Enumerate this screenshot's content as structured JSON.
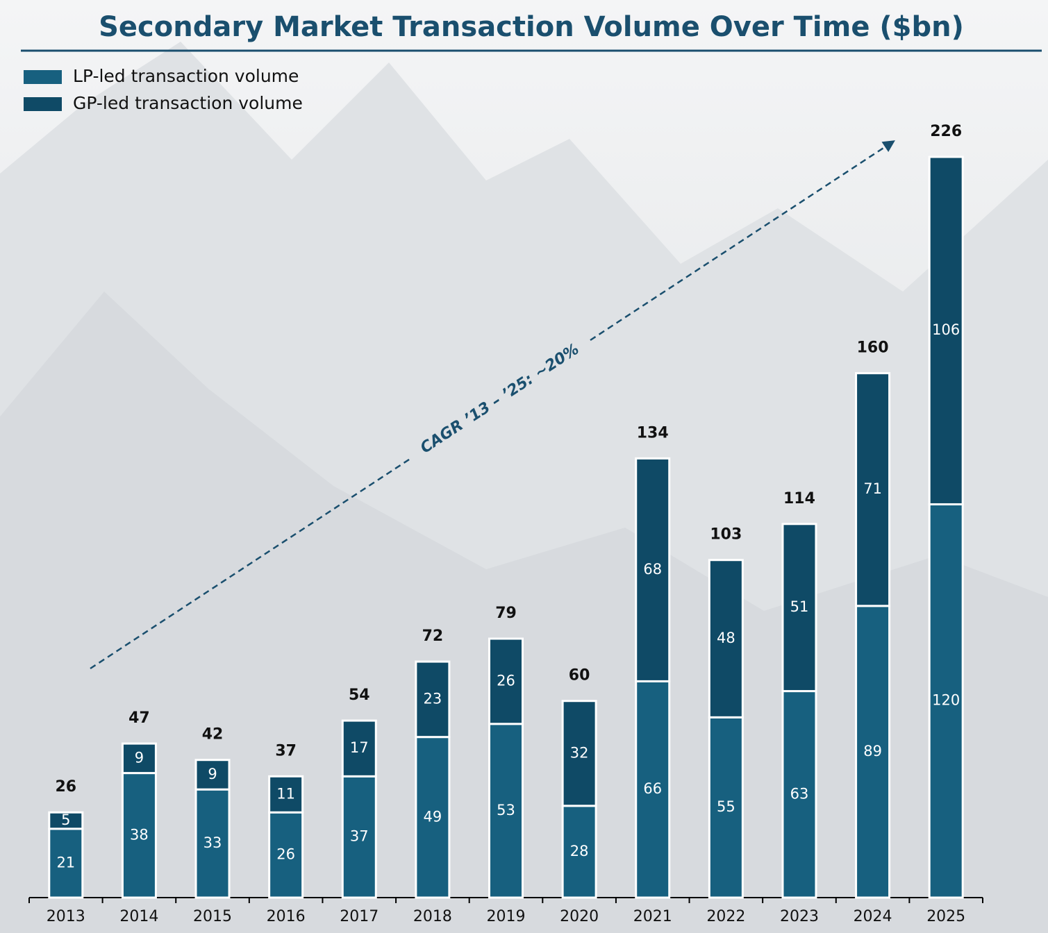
{
  "chart_data": {
    "type": "stacked-bar",
    "title": "Secondary Market Transaction Volume Over Time ($bn)",
    "categories": [
      "2013",
      "2014",
      "2015",
      "2016",
      "2017",
      "2018",
      "2019",
      "2020",
      "2021",
      "2022",
      "2023",
      "2024",
      "2025"
    ],
    "series": [
      {
        "name": "LP-led transaction volume",
        "color": "#17607f",
        "values": [
          21,
          38,
          33,
          26,
          37,
          49,
          53,
          28,
          66,
          55,
          63,
          89,
          120
        ]
      },
      {
        "name": "GP-led transaction volume",
        "color": "#0f4a66",
        "values": [
          5,
          9,
          9,
          11,
          17,
          23,
          26,
          32,
          68,
          48,
          51,
          71,
          106
        ]
      }
    ],
    "totals": [
      26,
      47,
      42,
      37,
      54,
      72,
      79,
      60,
      134,
      103,
      114,
      160,
      226
    ],
    "annotation": "CAGR ’13 – ’25: ~20%",
    "legend": "top-left"
  }
}
